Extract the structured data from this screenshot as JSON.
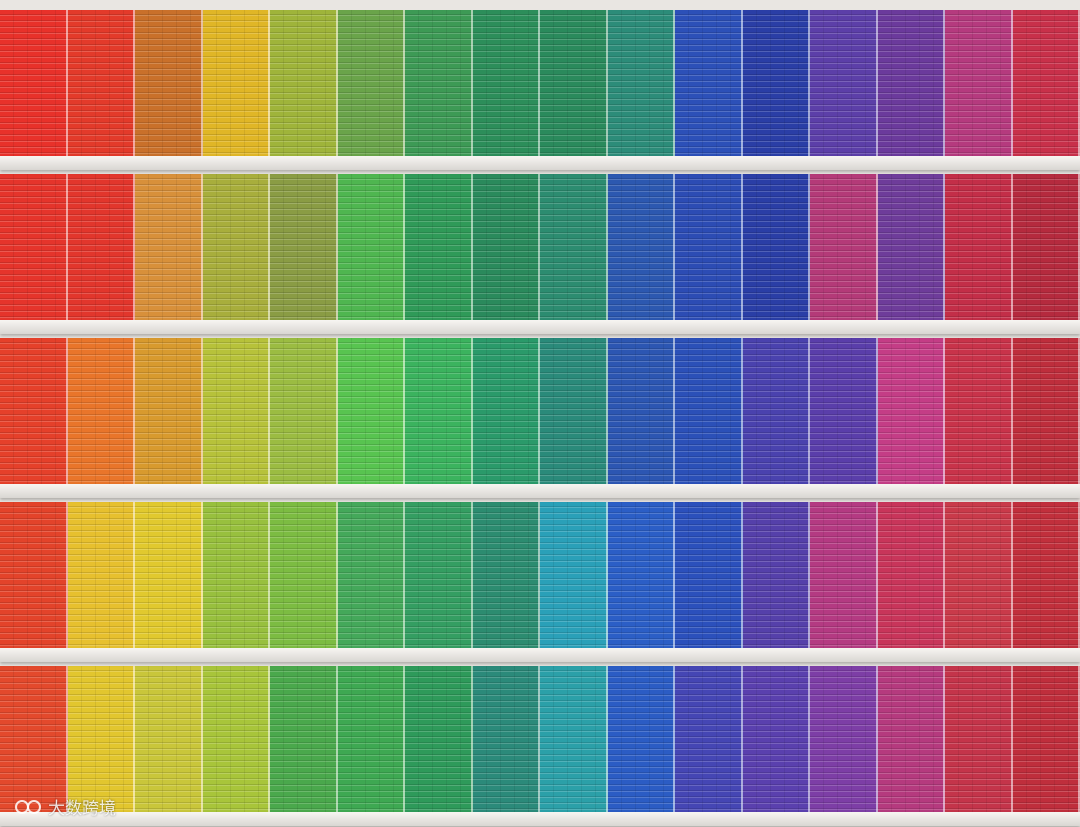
{
  "watermark": {
    "text": "大数跨境",
    "logo_icon": "logo-100-icon"
  },
  "rows": [
    [
      "#e8312a",
      "#e33a2a",
      "#c9702a",
      "#e0b626",
      "#9fb43a",
      "#6aa44a",
      "#3d9a55",
      "#2c8e5a",
      "#2a8a5c",
      "#2c8c79",
      "#2c50b8",
      "#2a3ea6",
      "#5c3fa8",
      "#6b3a9c",
      "#b53a7e",
      "#c8304a"
    ],
    [
      "#e5342b",
      "#e2362c",
      "#d8903a",
      "#a8ae3c",
      "#8a9c44",
      "#4fb650",
      "#2f9a58",
      "#2a8a5c",
      "#2c8c70",
      "#2c58b0",
      "#2c4cb4",
      "#2a3ea6",
      "#b43a78",
      "#6e3c9a",
      "#c32e48",
      "#b52a3e"
    ],
    [
      "#e5402a",
      "#e9752a",
      "#d89a2e",
      "#b7c23a",
      "#9bbc42",
      "#58c450",
      "#3bb35e",
      "#2a9a6a",
      "#2a8a7a",
      "#2c56b2",
      "#2b50b8",
      "#4a42ae",
      "#5a3eaa",
      "#c43d86",
      "#c8334a",
      "#be2e3c"
    ],
    [
      "#e3432a",
      "#e7c02e",
      "#e1c92e",
      "#98c03e",
      "#7cbc42",
      "#44a85a",
      "#349e62",
      "#2c8c70",
      "#2aa0b8",
      "#2b5ec6",
      "#2b50bc",
      "#5540aa",
      "#b43a82",
      "#c8355a",
      "#c93a4a",
      "#c12f3c"
    ],
    [
      "#e3492c",
      "#e2c62e",
      "#c9c63a",
      "#a8c53a",
      "#4aa84c",
      "#3ea852",
      "#2e9a5a",
      "#2b8a7a",
      "#2ba0a8",
      "#2b5cc4",
      "#4546b4",
      "#5a40ae",
      "#7d3ea6",
      "#b53a7e",
      "#c4344a",
      "#bf2e3c"
    ]
  ]
}
